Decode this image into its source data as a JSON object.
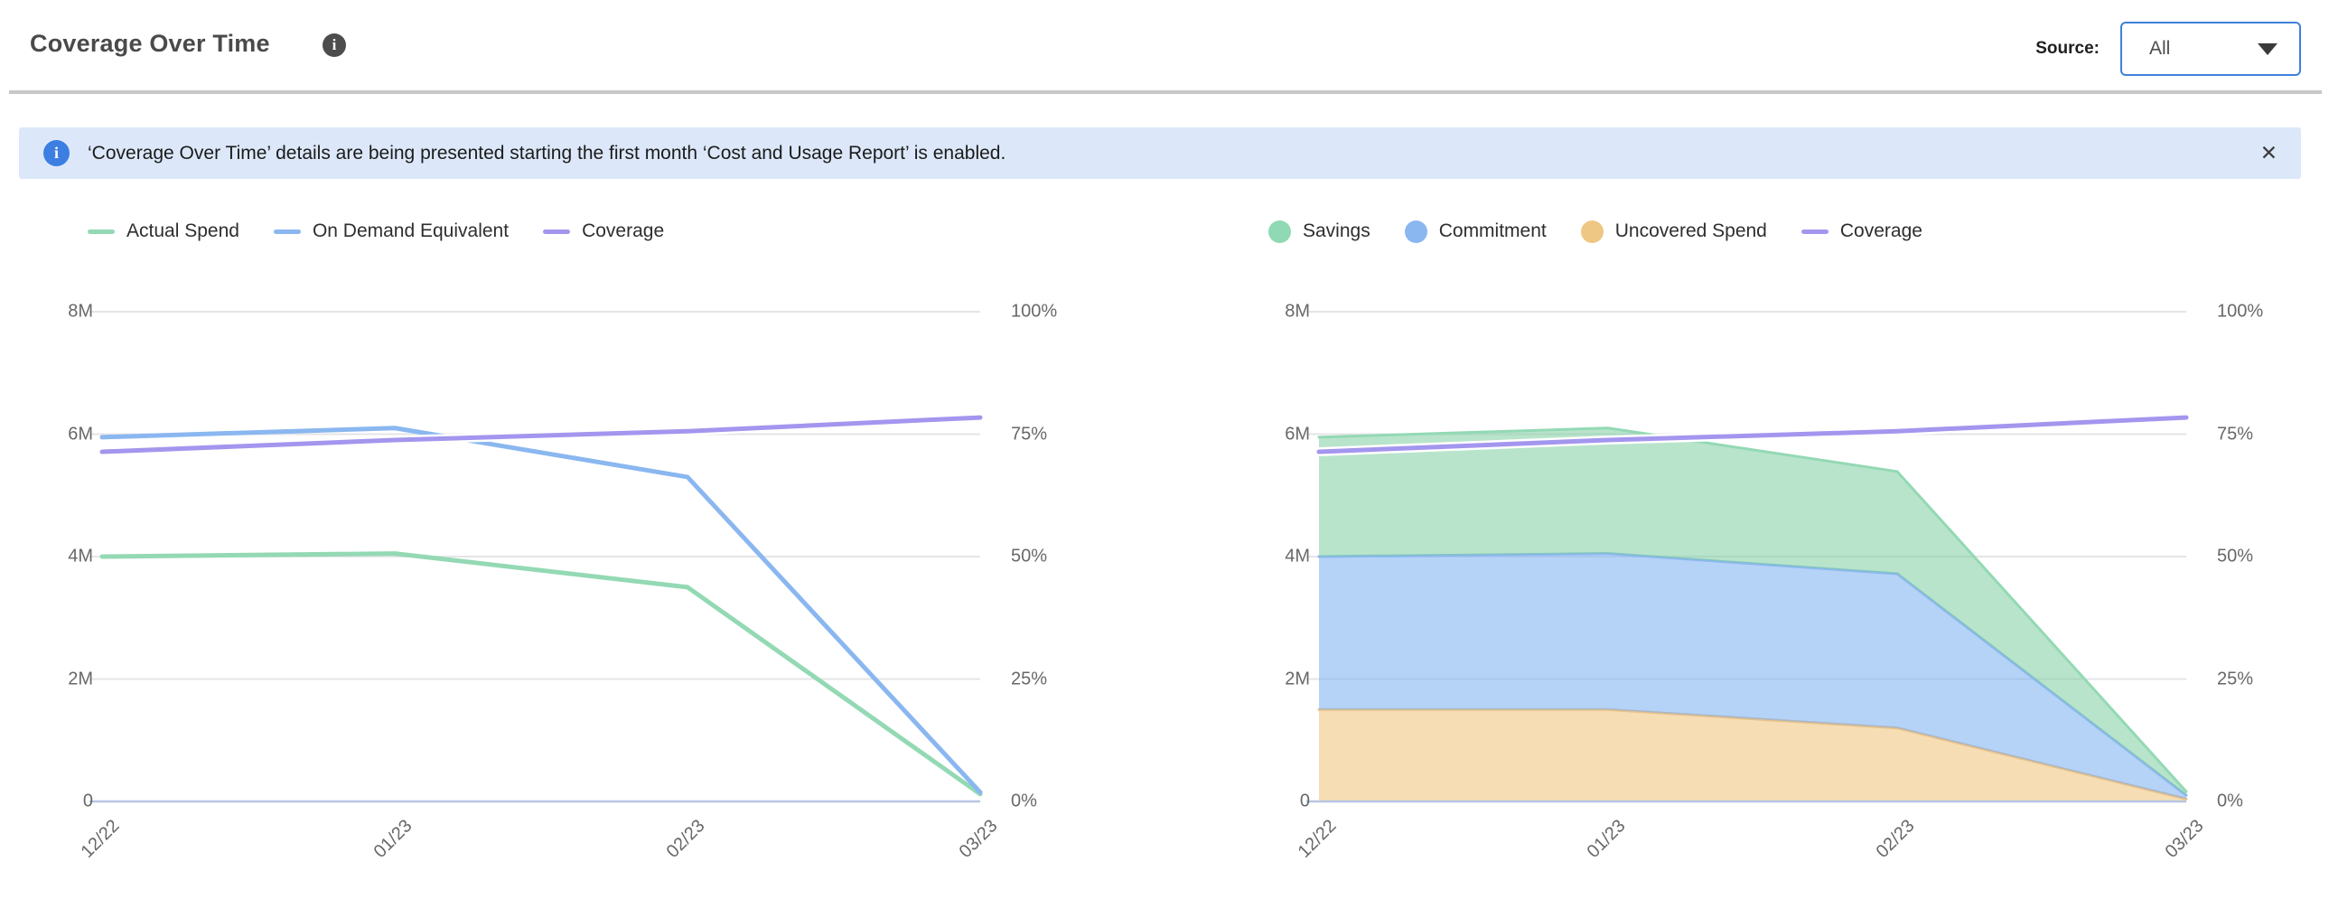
{
  "header": {
    "title": "Coverage Over Time",
    "info_icon": "i",
    "source_label": "Source:",
    "source_value": "All"
  },
  "banner": {
    "icon": "i",
    "text": "‘Coverage Over Time’ details are being presented starting the first month ‘Cost and Usage Report’ is enabled.",
    "close_icon": "✕"
  },
  "colors": {
    "accent_blue": "#3f80da",
    "banner_bg": "#dce8f9",
    "banner_icon": "#3c7ee2",
    "divider": "#c7c7c7",
    "gridline": "#e5e5e8",
    "axis_line": "#b8c5e3",
    "axis_text": "#686868",
    "green": "#93d9b4",
    "blue": "#8ab7f0",
    "orange": "#eec784",
    "purple": "#a396ee"
  },
  "chart_data": [
    {
      "type": "line",
      "title": "",
      "x_labels": [
        "12/22",
        "01/23",
        "02/23",
        "03/23"
      ],
      "y_left": {
        "labels": [
          "8M",
          "6M",
          "4M",
          "2M",
          "0"
        ],
        "min": 0,
        "max": 8000000
      },
      "y_right": {
        "labels": [
          "100%",
          "75%",
          "50%",
          "25%",
          "0%"
        ],
        "min": 0,
        "max": 100
      },
      "grid": true,
      "legend_position": "top",
      "legend": [
        {
          "label": "Actual Spend",
          "marker": "line",
          "color": "#93d9b4"
        },
        {
          "label": "On Demand Equivalent",
          "marker": "line",
          "color": "#8ab7f0"
        },
        {
          "label": "Coverage",
          "marker": "line",
          "color": "#a396ee"
        }
      ],
      "series": [
        {
          "name": "Actual Spend",
          "type": "line",
          "axis": "left",
          "color": "#93d9b4",
          "values": [
            4000000,
            4050000,
            3500000,
            120000
          ]
        },
        {
          "name": "On Demand Equivalent",
          "type": "line",
          "axis": "left",
          "color": "#8ab7f0",
          "values": [
            5950000,
            6100000,
            5300000,
            150000
          ]
        },
        {
          "name": "Coverage",
          "type": "line",
          "axis": "right",
          "color": "#a396ee",
          "halo": "#ffffff",
          "values": [
            71.4,
            73.8,
            75.6,
            78.4
          ]
        }
      ]
    },
    {
      "type": "area",
      "title": "",
      "x_labels": [
        "12/22",
        "01/23",
        "02/23",
        "03/23"
      ],
      "y_left": {
        "labels": [
          "8M",
          "6M",
          "4M",
          "2M",
          "0"
        ],
        "min": 0,
        "max": 8000000
      },
      "y_right": {
        "labels": [
          "100%",
          "75%",
          "50%",
          "25%",
          "0%"
        ],
        "min": 0,
        "max": 100
      },
      "grid": true,
      "legend_position": "top",
      "legend": [
        {
          "label": "Savings",
          "marker": "dot",
          "color": "#8fd9b4"
        },
        {
          "label": "Commitment",
          "marker": "dot",
          "color": "#8ab7f0"
        },
        {
          "label": "Uncovered Spend",
          "marker": "dot",
          "color": "#eec784"
        },
        {
          "label": "Coverage",
          "marker": "line",
          "color": "#a396ee"
        }
      ],
      "series": [
        {
          "name": "Uncovered Spend",
          "type": "area",
          "axis": "left",
          "stack": "total",
          "color": "#e9c289",
          "fill": "rgba(238,193,118,0.55)",
          "values": [
            1500000,
            1500000,
            1200000,
            40000
          ]
        },
        {
          "name": "Commitment",
          "type": "area",
          "axis": "left",
          "stack": "total",
          "color": "#8ab7f0",
          "fill": "rgba(120,173,240,0.55)",
          "values": [
            2500000,
            2550000,
            2520000,
            60000
          ]
        },
        {
          "name": "Savings",
          "type": "area",
          "axis": "left",
          "stack": "total",
          "color": "#93d9b4",
          "fill": "rgba(125,205,160,0.55)",
          "values": [
            1950000,
            2050000,
            1670000,
            60000
          ]
        },
        {
          "name": "Coverage",
          "type": "line",
          "axis": "right",
          "color": "#a396ee",
          "halo": "#ffffff",
          "values": [
            71.4,
            73.8,
            75.6,
            78.4
          ]
        }
      ]
    }
  ]
}
